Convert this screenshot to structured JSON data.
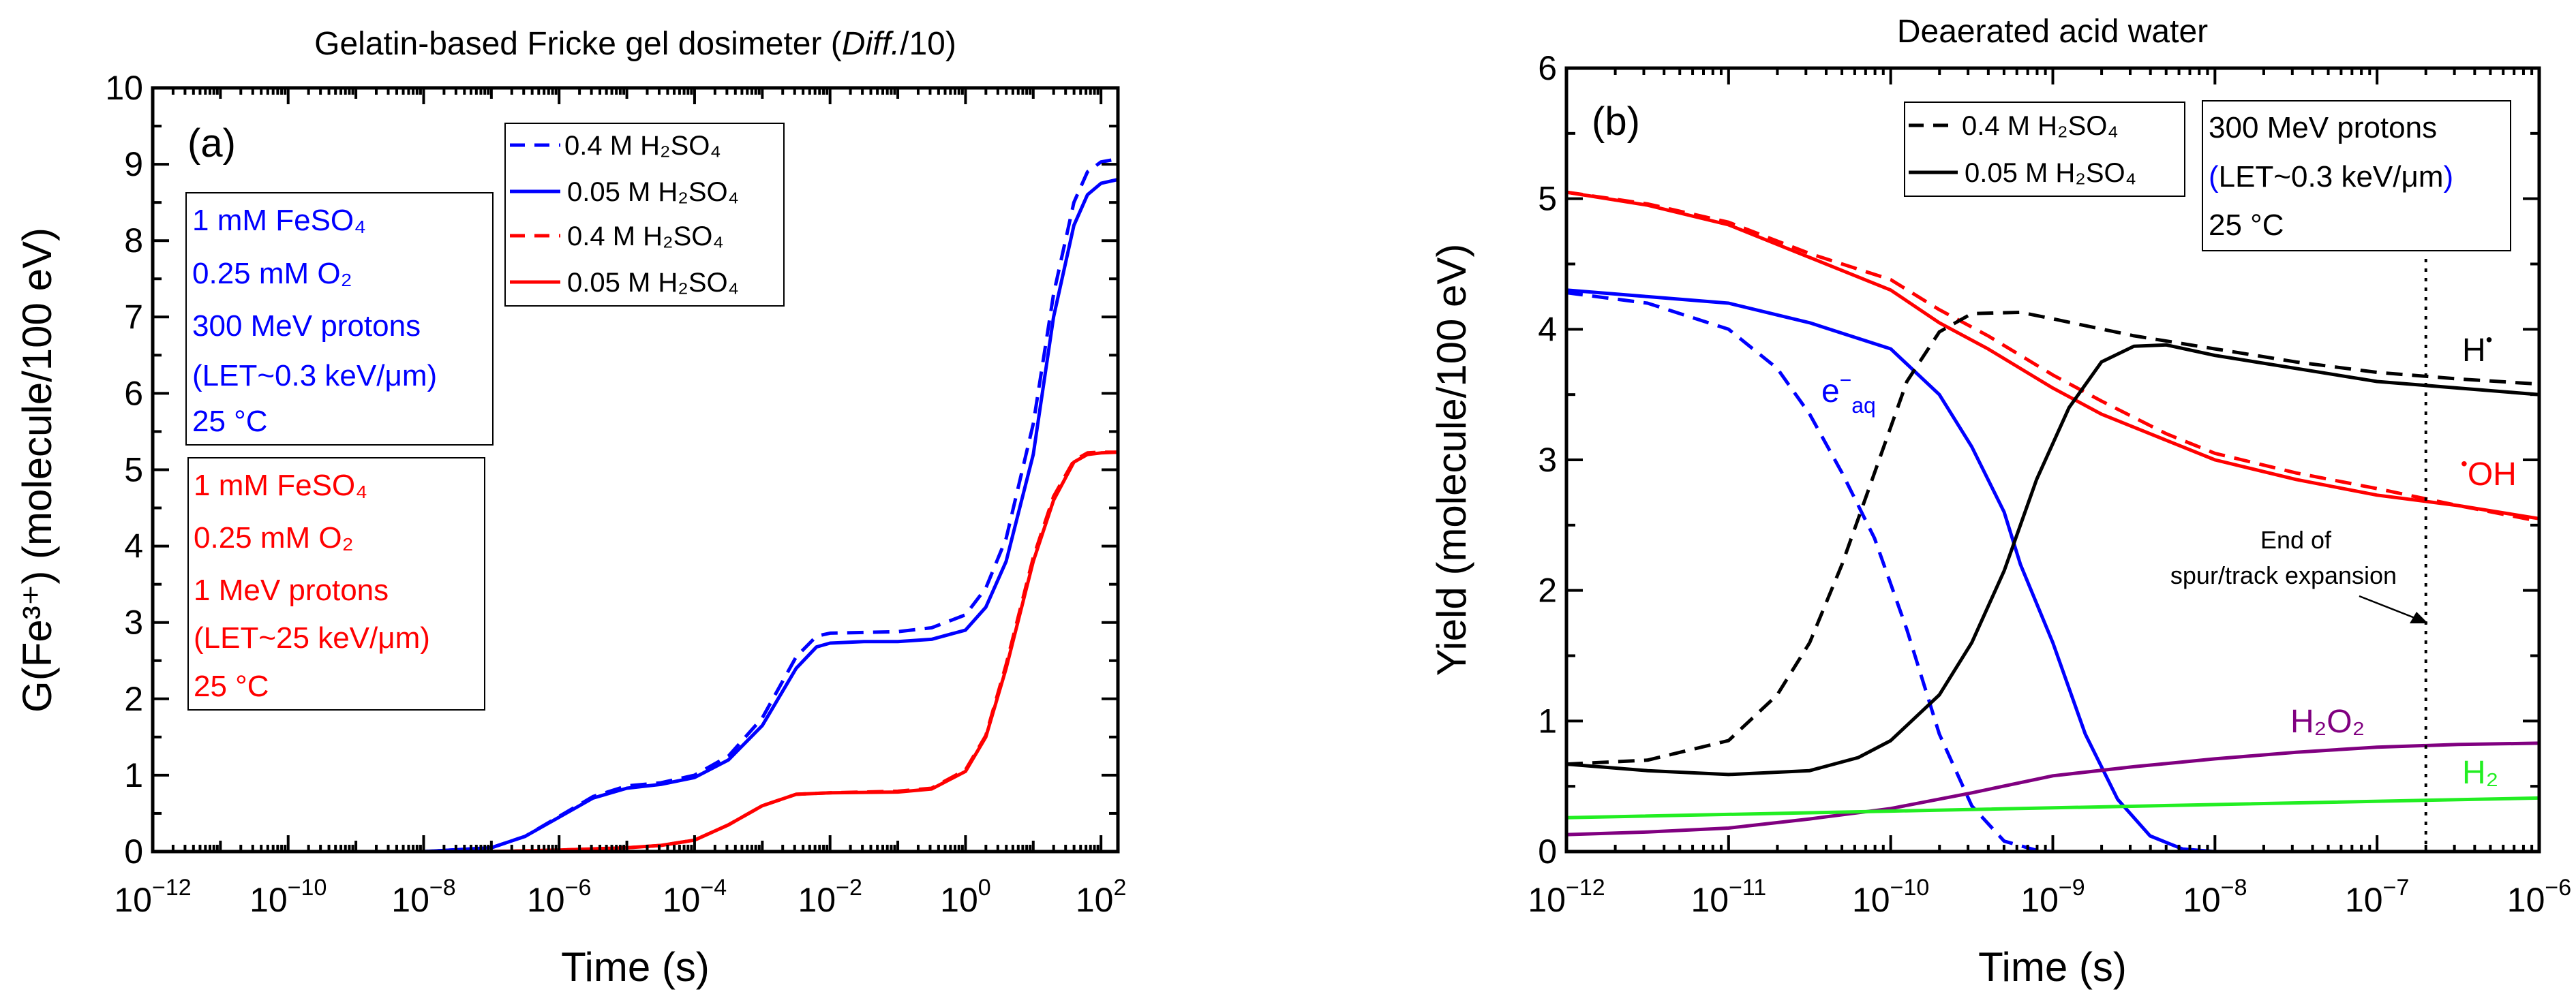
{
  "colors": {
    "blue": "#0000ff",
    "red": "#ff0000",
    "black": "#000000",
    "purple": "#800080",
    "green": "#22ee22"
  },
  "chart_data": [
    {
      "type": "line",
      "panel_label": "(a)",
      "title_main": "Gelatin-based Fricke gel dosimeter (",
      "title_italic": "Diff.",
      "title_end": "/10)",
      "xlabel": "Time (s)",
      "ylabel": "G(Fe³⁺) (molecule/100 eV)",
      "xscale": "log",
      "xlim_log10": [
        -12,
        2.25
      ],
      "ylim": [
        0,
        10
      ],
      "xticks_log10": [
        -12,
        -10,
        -8,
        -6,
        -4,
        -2,
        0,
        2
      ],
      "yticks": [
        0,
        1,
        2,
        3,
        4,
        5,
        6,
        7,
        8,
        9,
        10
      ],
      "legend": [
        "0.4 M H₂SO₄",
        "0.05 M H₂SO₄",
        "0.4 M H₂SO₄",
        "0.05 M H₂SO₄"
      ],
      "info_blue": [
        "1 mM FeSO₄",
        "0.25 mM O₂",
        "300 MeV protons",
        "(LET~0.3 keV/μm)",
        "25 °C"
      ],
      "info_red": [
        "1 mM FeSO₄",
        "0.25 mM O₂",
        "1 MeV protons",
        "(LET~25 keV/μm)",
        "25 °C"
      ],
      "series": [
        {
          "name": "300 MeV, 0.4 M H₂SO₄",
          "color": "blue",
          "dash": true,
          "x_log10": [
            -12,
            -8,
            -7,
            -6.5,
            -6,
            -5.5,
            -5,
            -4.5,
            -4,
            -3.5,
            -3,
            -2.5,
            -2.2,
            -2,
            -1.5,
            -1,
            -0.5,
            0,
            0.3,
            0.6,
            1,
            1.3,
            1.6,
            1.8,
            2,
            2.25
          ],
          "y": [
            0,
            0,
            0.05,
            0.2,
            0.46,
            0.72,
            0.86,
            0.9,
            1.0,
            1.25,
            1.75,
            2.55,
            2.82,
            2.86,
            2.87,
            2.88,
            2.93,
            3.1,
            3.45,
            4.1,
            5.6,
            7.3,
            8.5,
            8.9,
            9.03,
            9.07
          ]
        },
        {
          "name": "300 MeV, 0.05 M H₂SO₄",
          "color": "blue",
          "dash": false,
          "x_log10": [
            -12,
            -8,
            -7,
            -6.5,
            -6,
            -5.5,
            -5,
            -4.5,
            -4,
            -3.5,
            -3,
            -2.5,
            -2.2,
            -2,
            -1.5,
            -1,
            -0.5,
            0,
            0.3,
            0.6,
            1,
            1.3,
            1.6,
            1.8,
            2,
            2.25
          ],
          "y": [
            0,
            0,
            0.05,
            0.2,
            0.45,
            0.7,
            0.83,
            0.88,
            0.97,
            1.2,
            1.65,
            2.4,
            2.68,
            2.73,
            2.75,
            2.75,
            2.78,
            2.9,
            3.2,
            3.8,
            5.2,
            7.0,
            8.2,
            8.6,
            8.75,
            8.8
          ]
        },
        {
          "name": "1 MeV, 0.4 M H₂SO₄",
          "color": "red",
          "dash": true,
          "x_log10": [
            -12,
            -7,
            -6,
            -5,
            -4.5,
            -4,
            -3.5,
            -3,
            -2.5,
            -2,
            -1,
            -0.5,
            0,
            0.3,
            0.6,
            1,
            1.3,
            1.6,
            1.8,
            2,
            2.25
          ],
          "y": [
            0,
            0,
            0.02,
            0.05,
            0.08,
            0.15,
            0.35,
            0.6,
            0.75,
            0.77,
            0.79,
            0.83,
            1.07,
            1.52,
            2.45,
            3.85,
            4.65,
            5.12,
            5.22,
            5.23,
            5.23
          ]
        },
        {
          "name": "1 MeV, 0.05 M H₂SO₄",
          "color": "red",
          "dash": false,
          "x_log10": [
            -12,
            -7,
            -6,
            -5,
            -4.5,
            -4,
            -3.5,
            -3,
            -2.5,
            -2,
            -1,
            -0.5,
            0,
            0.3,
            0.6,
            1,
            1.3,
            1.6,
            1.8,
            2,
            2.25
          ],
          "y": [
            0,
            0,
            0.02,
            0.05,
            0.08,
            0.15,
            0.35,
            0.6,
            0.75,
            0.77,
            0.78,
            0.82,
            1.05,
            1.5,
            2.4,
            3.8,
            4.6,
            5.1,
            5.2,
            5.22,
            5.23
          ]
        }
      ]
    },
    {
      "type": "line",
      "panel_label": "(b)",
      "title": "Deaerated acid water",
      "xlabel": "Time (s)",
      "ylabel": "Yield (molecule/100 eV)",
      "xscale": "log",
      "xlim_log10": [
        -12,
        -6
      ],
      "ylim": [
        0,
        6
      ],
      "xticks_log10": [
        -12,
        -11,
        -10,
        -9,
        -8,
        -7,
        -6
      ],
      "yticks": [
        0,
        1,
        2,
        3,
        4,
        5,
        6
      ],
      "legend": [
        "0.4 M H₂SO₄",
        "0.05 M H₂SO₄"
      ],
      "info": [
        "300 MeV protons",
        "(",
        "LET~0.3 keV/μm",
        ")",
        "25 °C"
      ],
      "species_labels": {
        "H": "H",
        "H_dot": "•",
        "OH_dot": "•",
        "OH": "OH",
        "e": "e",
        "e_sup": "−",
        "e_sub": "aq",
        "H2O2": "H₂O₂",
        "H2": "H₂"
      },
      "annotation": [
        "End of",
        "spur/track expansion"
      ],
      "end_of_expansion_time_s": 2e-07,
      "series": [
        {
          "name": "•OH 0.4 M",
          "color": "red",
          "dash": true,
          "x_log10": [
            -12,
            -11.5,
            -11,
            -10.5,
            -10,
            -9.7,
            -9.4,
            -9,
            -8.7,
            -8.3,
            -8,
            -7.5,
            -7,
            -6.5,
            -6
          ],
          "y": [
            5.05,
            4.96,
            4.82,
            4.58,
            4.38,
            4.15,
            3.95,
            3.65,
            3.45,
            3.2,
            3.05,
            2.9,
            2.78,
            2.65,
            2.53
          ]
        },
        {
          "name": "•OH 0.05 M",
          "color": "red",
          "dash": false,
          "x_log10": [
            -12,
            -11.5,
            -11,
            -10.5,
            -10,
            -9.7,
            -9.4,
            -9,
            -8.7,
            -8.3,
            -8,
            -7.5,
            -7,
            -6.5,
            -6
          ],
          "y": [
            5.05,
            4.95,
            4.8,
            4.55,
            4.3,
            4.05,
            3.85,
            3.55,
            3.35,
            3.15,
            3.0,
            2.85,
            2.73,
            2.65,
            2.55
          ]
        },
        {
          "name": "e⁻aq 0.4 M",
          "color": "blue",
          "dash": true,
          "x_log10": [
            -12,
            -11.5,
            -11,
            -10.7,
            -10.5,
            -10.3,
            -10.1,
            -9.9,
            -9.7,
            -9.5,
            -9.3,
            -9.1,
            -9
          ],
          "y": [
            4.28,
            4.2,
            4.0,
            3.7,
            3.35,
            2.9,
            2.4,
            1.7,
            0.9,
            0.35,
            0.08,
            0.01,
            0
          ]
        },
        {
          "name": "e⁻aq 0.05 M",
          "color": "blue",
          "dash": false,
          "x_log10": [
            -12,
            -11.5,
            -11,
            -10.5,
            -10,
            -9.7,
            -9.5,
            -9.3,
            -9.2,
            -9,
            -8.8,
            -8.6,
            -8.4,
            -8.2,
            -8
          ],
          "y": [
            4.3,
            4.25,
            4.2,
            4.05,
            3.85,
            3.5,
            3.1,
            2.6,
            2.2,
            1.6,
            0.9,
            0.4,
            0.12,
            0.02,
            0
          ]
        },
        {
          "name": "H• 0.4 M",
          "color": "black",
          "dash": true,
          "x_log10": [
            -12,
            -11.5,
            -11,
            -10.7,
            -10.5,
            -10.3,
            -10.1,
            -9.9,
            -9.7,
            -9.5,
            -9.2,
            -9,
            -8.5,
            -8,
            -7.5,
            -7,
            -6.5,
            -6
          ],
          "y": [
            0.67,
            0.7,
            0.85,
            1.2,
            1.6,
            2.2,
            2.9,
            3.6,
            3.98,
            4.12,
            4.13,
            4.08,
            3.95,
            3.85,
            3.75,
            3.67,
            3.62,
            3.58
          ]
        },
        {
          "name": "H• 0.05 M",
          "color": "black",
          "dash": false,
          "x_log10": [
            -12,
            -11.5,
            -11,
            -10.5,
            -10.2,
            -10,
            -9.7,
            -9.5,
            -9.3,
            -9.1,
            -8.9,
            -8.7,
            -8.5,
            -8.3,
            -8,
            -7.5,
            -7,
            -6.5,
            -6
          ],
          "y": [
            0.67,
            0.62,
            0.59,
            0.62,
            0.72,
            0.85,
            1.2,
            1.6,
            2.15,
            2.85,
            3.4,
            3.75,
            3.87,
            3.88,
            3.8,
            3.7,
            3.6,
            3.55,
            3.5
          ]
        },
        {
          "name": "H₂O₂",
          "color": "purple",
          "dash": false,
          "x_log10": [
            -12,
            -11.5,
            -11,
            -10.5,
            -10,
            -9.5,
            -9,
            -8.5,
            -8,
            -7.5,
            -7,
            -6.5,
            -6
          ],
          "y": [
            0.13,
            0.15,
            0.18,
            0.25,
            0.33,
            0.45,
            0.58,
            0.65,
            0.71,
            0.76,
            0.8,
            0.82,
            0.83
          ]
        },
        {
          "name": "H₂",
          "color": "green",
          "dash": false,
          "x_log10": [
            -12,
            -10,
            -8,
            -6
          ],
          "y": [
            0.26,
            0.31,
            0.36,
            0.41
          ]
        }
      ]
    }
  ]
}
